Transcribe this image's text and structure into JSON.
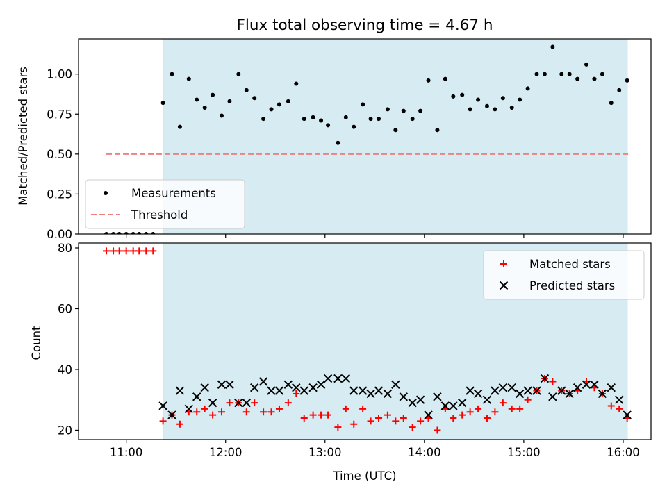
{
  "title": "Flux total observing time = 4.67 h",
  "chart_data": [
    {
      "type": "scatter",
      "ylabel": "Matched/Predicted stars",
      "ylim": [
        0,
        1.22
      ],
      "yticks": [
        0.0,
        0.25,
        0.5,
        0.75,
        1.0
      ],
      "ytick_labels": [
        "0.00",
        "0.25",
        "0.50",
        "0.75",
        "1.00"
      ],
      "xlim": [
        10.52,
        16.28
      ],
      "xticks": [
        11,
        12,
        13,
        14,
        15,
        16
      ],
      "shaded_span": [
        11.37,
        16.04
      ],
      "shaded_color": "#add8e6",
      "legend_position": "lower-left",
      "legend": [
        {
          "label": "Measurements",
          "marker": "dot",
          "color": "#000000"
        },
        {
          "label": "Threshold",
          "marker": "dashed-line",
          "color": "#f08080"
        }
      ],
      "threshold": {
        "name": "Threshold",
        "value": 0.5,
        "x_range": [
          10.8,
          16.05
        ],
        "color": "#f08080"
      },
      "series": [
        {
          "name": "Measurements",
          "color": "#000000",
          "x": [
            10.8,
            10.87,
            10.93,
            11.0,
            11.07,
            11.13,
            11.2,
            11.27,
            11.37,
            11.46,
            11.54,
            11.63,
            11.71,
            11.79,
            11.87,
            11.96,
            12.04,
            12.13,
            12.21,
            12.29,
            12.38,
            12.46,
            12.54,
            12.63,
            12.71,
            12.79,
            12.88,
            12.96,
            13.03,
            13.13,
            13.21,
            13.29,
            13.38,
            13.46,
            13.54,
            13.63,
            13.71,
            13.79,
            13.88,
            13.96,
            14.04,
            14.13,
            14.21,
            14.29,
            14.38,
            14.46,
            14.54,
            14.63,
            14.71,
            14.79,
            14.88,
            14.96,
            15.04,
            15.13,
            15.21,
            15.29,
            15.38,
            15.46,
            15.54,
            15.63,
            15.71,
            15.79,
            15.88,
            15.96,
            16.04
          ],
          "y": [
            0,
            0,
            0,
            0,
            0,
            0,
            0,
            0,
            0.82,
            1.0,
            0.67,
            0.97,
            0.84,
            0.79,
            0.87,
            0.74,
            0.83,
            1.0,
            0.9,
            0.85,
            0.72,
            0.78,
            0.81,
            0.83,
            0.94,
            0.72,
            0.73,
            0.71,
            0.68,
            0.57,
            0.73,
            0.67,
            0.81,
            0.72,
            0.72,
            0.78,
            0.65,
            0.77,
            0.72,
            0.77,
            0.96,
            0.65,
            0.97,
            0.86,
            0.87,
            0.78,
            0.84,
            0.8,
            0.78,
            0.85,
            0.79,
            0.84,
            0.91,
            1.0,
            1.0,
            1.17,
            1.0,
            1.0,
            0.97,
            1.06,
            0.97,
            1.0,
            0.82,
            0.9,
            0.96
          ]
        }
      ]
    },
    {
      "type": "scatter",
      "xlabel": "Time (UTC)",
      "ylabel": "Count",
      "ylim": [
        16.9,
        81.6
      ],
      "yticks": [
        20,
        40,
        60,
        80
      ],
      "ytick_labels": [
        "20",
        "40",
        "60",
        "80"
      ],
      "xlim": [
        10.52,
        16.28
      ],
      "xticks": [
        11,
        12,
        13,
        14,
        15,
        16
      ],
      "xtick_labels": [
        "11:00",
        "12:00",
        "13:00",
        "14:00",
        "15:00",
        "16:00"
      ],
      "shaded_span": [
        11.37,
        16.04
      ],
      "shaded_color": "#add8e6",
      "legend_position": "top-right",
      "legend": [
        {
          "label": "Matched stars",
          "marker": "plus",
          "color": "#ff0000"
        },
        {
          "label": "Predicted stars",
          "marker": "x",
          "color": "#000000"
        }
      ],
      "series": [
        {
          "name": "Matched stars",
          "color": "#ff0000",
          "x": [
            10.8,
            10.87,
            10.93,
            11.0,
            11.07,
            11.13,
            11.2,
            11.27,
            11.37,
            11.46,
            11.54,
            11.63,
            11.71,
            11.79,
            11.87,
            11.96,
            12.04,
            12.13,
            12.21,
            12.29,
            12.38,
            12.46,
            12.54,
            12.63,
            12.71,
            12.79,
            12.88,
            12.96,
            13.03,
            13.13,
            13.21,
            13.29,
            13.38,
            13.46,
            13.54,
            13.63,
            13.71,
            13.79,
            13.88,
            13.96,
            14.04,
            14.13,
            14.21,
            14.29,
            14.38,
            14.46,
            14.54,
            14.63,
            14.71,
            14.79,
            14.88,
            14.96,
            15.04,
            15.13,
            15.21,
            15.29,
            15.38,
            15.46,
            15.54,
            15.63,
            15.71,
            15.79,
            15.88,
            15.96,
            16.04
          ],
          "y": [
            79,
            79,
            79,
            79,
            79,
            79,
            79,
            79,
            23,
            25,
            22,
            26,
            26,
            27,
            25,
            26,
            29,
            29,
            26,
            29,
            26,
            26,
            27,
            29,
            32,
            24,
            25,
            25,
            25,
            21,
            27,
            22,
            27,
            23,
            24,
            25,
            23,
            24,
            21,
            23,
            24,
            20,
            27,
            24,
            25,
            26,
            27,
            24,
            26,
            29,
            27,
            27,
            30,
            33,
            37,
            36,
            33,
            32,
            33,
            36,
            34,
            32,
            28,
            27,
            24
          ]
        },
        {
          "name": "Predicted stars",
          "color": "#000000",
          "x": [
            11.37,
            11.46,
            11.54,
            11.63,
            11.71,
            11.79,
            11.87,
            11.96,
            12.04,
            12.13,
            12.21,
            12.29,
            12.38,
            12.46,
            12.54,
            12.63,
            12.71,
            12.79,
            12.88,
            12.96,
            13.03,
            13.13,
            13.21,
            13.29,
            13.38,
            13.46,
            13.54,
            13.63,
            13.71,
            13.79,
            13.88,
            13.96,
            14.04,
            14.13,
            14.21,
            14.29,
            14.38,
            14.46,
            14.54,
            14.63,
            14.71,
            14.79,
            14.88,
            14.96,
            15.04,
            15.13,
            15.21,
            15.29,
            15.38,
            15.46,
            15.54,
            15.63,
            15.71,
            15.79,
            15.88,
            15.96,
            16.04
          ],
          "y": [
            28,
            25,
            33,
            27,
            31,
            34,
            29,
            35,
            35,
            29,
            29,
            34,
            36,
            33,
            33,
            35,
            34,
            33,
            34,
            35,
            37,
            37,
            37,
            33,
            33,
            32,
            33,
            32,
            35,
            31,
            29,
            30,
            25,
            31,
            28,
            28,
            29,
            33,
            32,
            30,
            33,
            34,
            34,
            32,
            33,
            33,
            37,
            31,
            33,
            32,
            34,
            35,
            35,
            32,
            34,
            30,
            25
          ]
        }
      ]
    }
  ]
}
